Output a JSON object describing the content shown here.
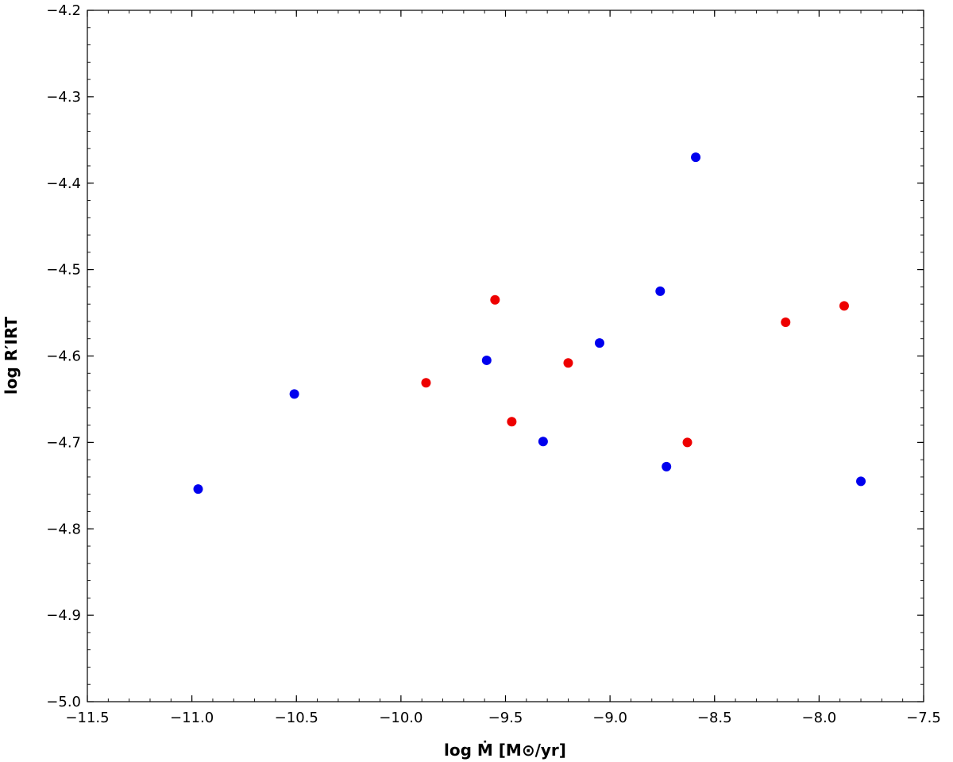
{
  "chart_data": {
    "type": "scatter",
    "title": "",
    "xlabel": "log Ṁ  [M⊙/yr]",
    "ylabel": "log R′IRT",
    "xlim": [
      -11.5,
      -7.5
    ],
    "ylim": [
      -5.0,
      -4.2
    ],
    "xticks": [
      "−11.5",
      "−11.0",
      "−10.5",
      "−10.0",
      "−9.5",
      "−9.0",
      "−8.5",
      "−8.0",
      "−7.5"
    ],
    "yticks": [
      "−5.0",
      "−4.9",
      "−4.8",
      "−4.7",
      "−4.6",
      "−4.5",
      "−4.4",
      "−4.3",
      "−4.2"
    ],
    "grid": false,
    "legend": false,
    "series": [
      {
        "color": "#0000ee",
        "points": [
          {
            "x": -10.97,
            "y": -4.754
          },
          {
            "x": -10.51,
            "y": -4.644
          },
          {
            "x": -9.59,
            "y": -4.605
          },
          {
            "x": -9.32,
            "y": -4.699
          },
          {
            "x": -9.05,
            "y": -4.585
          },
          {
            "x": -8.76,
            "y": -4.525
          },
          {
            "x": -8.73,
            "y": -4.728
          },
          {
            "x": -8.59,
            "y": -4.37
          },
          {
            "x": -7.8,
            "y": -4.745
          }
        ]
      },
      {
        "color": "#ee0000",
        "points": [
          {
            "x": -9.88,
            "y": -4.631
          },
          {
            "x": -9.55,
            "y": -4.535
          },
          {
            "x": -9.47,
            "y": -4.676
          },
          {
            "x": -9.2,
            "y": -4.608
          },
          {
            "x": -8.63,
            "y": -4.7
          },
          {
            "x": -8.16,
            "y": -4.561
          },
          {
            "x": -7.88,
            "y": -4.542
          }
        ]
      }
    ]
  }
}
